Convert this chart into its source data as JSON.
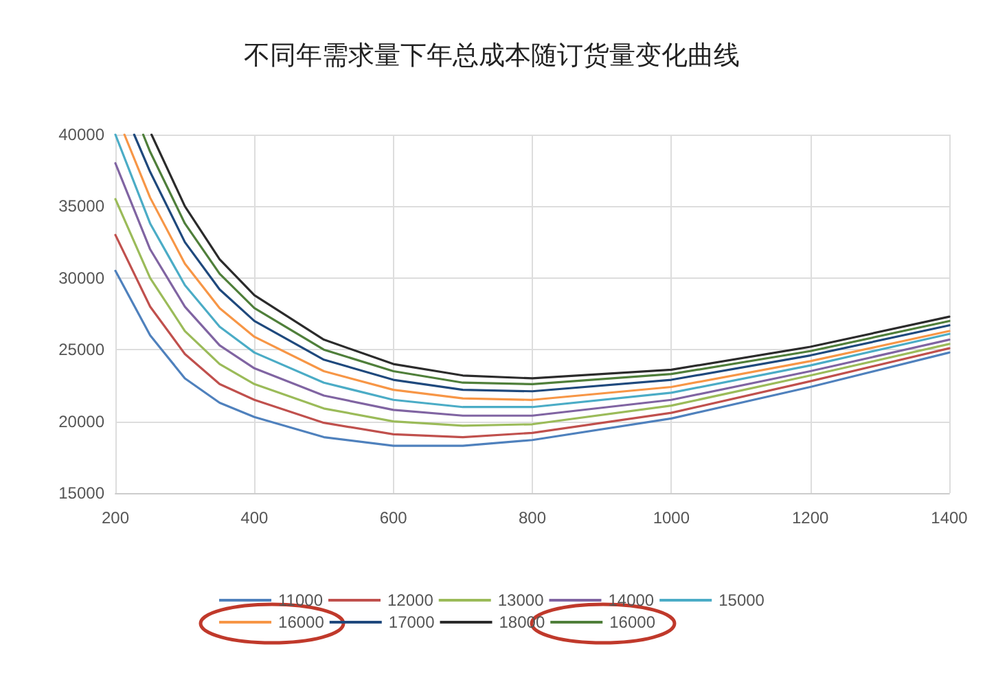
{
  "chart_data": {
    "type": "line",
    "title": "不同年需求量下年总成本随订货量变化曲线",
    "xlim": [
      200,
      1400
    ],
    "xticks": [
      200,
      400,
      600,
      800,
      1000,
      1200,
      1400
    ],
    "ylim": [
      15000,
      40000
    ],
    "yticks": [
      15000,
      20000,
      25000,
      30000,
      35000,
      40000
    ],
    "grid": true,
    "legend": "bottom",
    "marker": "none",
    "line_style": "solid",
    "x": [
      200,
      250,
      300,
      350,
      400,
      500,
      600,
      700,
      800,
      1000,
      1200,
      1400
    ],
    "series": [
      {
        "name": "11000",
        "color": "#4f81bd",
        "values": [
          30500,
          26000,
          23000,
          21300,
          20300,
          18900,
          18300,
          18300,
          18700,
          20200,
          22400,
          24800
        ]
      },
      {
        "name": "12000",
        "color": "#c0504d",
        "values": [
          33000,
          28000,
          24700,
          22600,
          21500,
          19900,
          19100,
          18900,
          19200,
          20600,
          22800,
          25100
        ]
      },
      {
        "name": "13000",
        "color": "#9bbb59",
        "values": [
          35500,
          30000,
          26300,
          24000,
          22600,
          20900,
          20000,
          19700,
          19800,
          21100,
          23200,
          25400
        ]
      },
      {
        "name": "14000",
        "color": "#8064a2",
        "values": [
          38000,
          32000,
          28000,
          25300,
          23700,
          21800,
          20800,
          20400,
          20400,
          21500,
          23500,
          25700
        ]
      },
      {
        "name": "15000",
        "color": "#4bacc6",
        "values": [
          40000,
          33800,
          29500,
          26600,
          24800,
          22700,
          21500,
          21000,
          21000,
          22000,
          23900,
          26100
        ]
      },
      {
        "name": "16000",
        "color": "#f79646",
        "x": [
          213,
          250,
          300,
          350,
          400,
          500,
          600,
          700,
          800,
          1000,
          1200,
          1400
        ],
        "values": [
          40000,
          35600,
          31000,
          27900,
          25900,
          23500,
          22200,
          21600,
          21500,
          22400,
          24200,
          26300
        ]
      },
      {
        "name": "17000",
        "color": "#1f497d",
        "x": [
          227,
          250,
          300,
          350,
          400,
          500,
          600,
          700,
          800,
          1000,
          1200,
          1400
        ],
        "values": [
          40000,
          37400,
          32500,
          29200,
          27000,
          24300,
          22900,
          22200,
          22100,
          22900,
          24600,
          26700
        ]
      },
      {
        "name": "18000",
        "color": "#2b2b2b",
        "x": [
          252,
          300,
          350,
          400,
          500,
          600,
          700,
          800,
          1000,
          1200,
          1400
        ],
        "values": [
          40000,
          35000,
          31300,
          28800,
          25700,
          24000,
          23200,
          23000,
          23600,
          25200,
          27300
        ]
      },
      {
        "name": "16000",
        "color": "#4f7f3a",
        "x": [
          240,
          250,
          300,
          350,
          400,
          500,
          600,
          700,
          800,
          1000,
          1200,
          1400
        ],
        "values": [
          40000,
          38800,
          33800,
          30300,
          27900,
          25000,
          23500,
          22700,
          22600,
          23300,
          24900,
          27000
        ]
      }
    ]
  }
}
